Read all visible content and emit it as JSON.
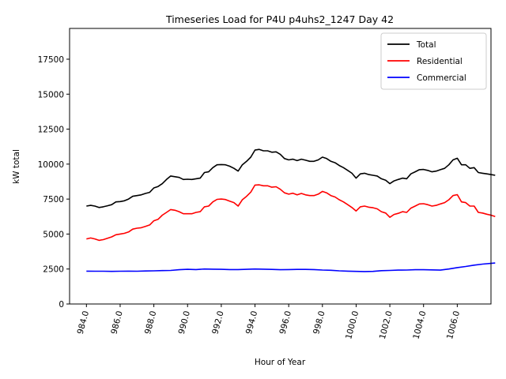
{
  "chart_data": {
    "type": "line",
    "title": "Timeseries Load for P4U p4uhs2_1247  Day 42",
    "xlabel": "Hour of Year",
    "ylabel": "kW total",
    "xlim": [
      983.0,
      1008.0
    ],
    "ylim": [
      0,
      19700
    ],
    "x_ticks": [
      984,
      986,
      988,
      990,
      992,
      994,
      996,
      998,
      1000,
      1002,
      1004,
      1006
    ],
    "x_tick_labels": [
      "984.0",
      "986.0",
      "988.0",
      "990.0",
      "992.0",
      "994.0",
      "996.0",
      "998.0",
      "1000.0",
      "1002.0",
      "1004.0",
      "1006.0"
    ],
    "y_ticks": [
      0,
      2500,
      5000,
      7500,
      10000,
      12500,
      15000,
      17500
    ],
    "y_tick_labels": [
      "0",
      "2500",
      "5000",
      "7500",
      "10000",
      "12500",
      "15000",
      "17500"
    ],
    "legend_position": "top-right",
    "series": [
      {
        "name": "Total",
        "color": "#000000",
        "points": [
          [
            984.0,
            7000
          ],
          [
            984.25,
            7050
          ],
          [
            984.5,
            7000
          ],
          [
            984.75,
            6900
          ],
          [
            985.0,
            6950
          ],
          [
            985.25,
            7020
          ],
          [
            985.5,
            7100
          ],
          [
            985.75,
            7300
          ],
          [
            986.0,
            7320
          ],
          [
            986.25,
            7380
          ],
          [
            986.5,
            7500
          ],
          [
            986.75,
            7700
          ],
          [
            987.0,
            7750
          ],
          [
            987.25,
            7800
          ],
          [
            987.5,
            7900
          ],
          [
            987.75,
            7980
          ],
          [
            988.0,
            8300
          ],
          [
            988.25,
            8400
          ],
          [
            988.5,
            8600
          ],
          [
            988.75,
            8900
          ],
          [
            989.0,
            9150
          ],
          [
            989.25,
            9100
          ],
          [
            989.5,
            9050
          ],
          [
            989.75,
            8900
          ],
          [
            990.0,
            8920
          ],
          [
            990.25,
            8900
          ],
          [
            990.5,
            8950
          ],
          [
            990.75,
            9000
          ],
          [
            991.0,
            9400
          ],
          [
            991.25,
            9450
          ],
          [
            991.5,
            9750
          ],
          [
            991.75,
            9950
          ],
          [
            992.0,
            9970
          ],
          [
            992.25,
            9950
          ],
          [
            992.5,
            9850
          ],
          [
            992.75,
            9700
          ],
          [
            993.0,
            9500
          ],
          [
            993.25,
            9950
          ],
          [
            993.5,
            10200
          ],
          [
            993.75,
            10500
          ],
          [
            994.0,
            11000
          ],
          [
            994.25,
            11050
          ],
          [
            994.5,
            10950
          ],
          [
            994.75,
            10950
          ],
          [
            995.0,
            10850
          ],
          [
            995.25,
            10880
          ],
          [
            995.5,
            10700
          ],
          [
            995.75,
            10400
          ],
          [
            996.0,
            10300
          ],
          [
            996.25,
            10350
          ],
          [
            996.5,
            10250
          ],
          [
            996.75,
            10350
          ],
          [
            997.0,
            10280
          ],
          [
            997.25,
            10200
          ],
          [
            997.5,
            10200
          ],
          [
            997.75,
            10300
          ],
          [
            998.0,
            10500
          ],
          [
            998.25,
            10400
          ],
          [
            998.5,
            10200
          ],
          [
            998.75,
            10100
          ],
          [
            999.0,
            9900
          ],
          [
            999.25,
            9750
          ],
          [
            999.5,
            9550
          ],
          [
            999.75,
            9350
          ],
          [
            1000.0,
            9000
          ],
          [
            1000.25,
            9300
          ],
          [
            1000.5,
            9350
          ],
          [
            1000.75,
            9250
          ],
          [
            1001.0,
            9200
          ],
          [
            1001.25,
            9150
          ],
          [
            1001.5,
            8950
          ],
          [
            1001.75,
            8850
          ],
          [
            1002.0,
            8600
          ],
          [
            1002.25,
            8800
          ],
          [
            1002.5,
            8900
          ],
          [
            1002.75,
            9000
          ],
          [
            1003.0,
            8950
          ],
          [
            1003.25,
            9300
          ],
          [
            1003.5,
            9450
          ],
          [
            1003.75,
            9600
          ],
          [
            1004.0,
            9620
          ],
          [
            1004.25,
            9550
          ],
          [
            1004.5,
            9450
          ],
          [
            1004.75,
            9500
          ],
          [
            1005.0,
            9600
          ],
          [
            1005.25,
            9700
          ],
          [
            1005.5,
            9950
          ],
          [
            1005.75,
            10300
          ],
          [
            1006.0,
            10420
          ],
          [
            1006.25,
            9950
          ],
          [
            1006.5,
            9950
          ],
          [
            1006.75,
            9700
          ],
          [
            1007.0,
            9750
          ],
          [
            1007.25,
            9400
          ],
          [
            1007.5,
            9350
          ],
          [
            1007.75,
            9300
          ],
          [
            1008.0,
            9250
          ],
          [
            1008.25,
            9200
          ]
        ]
      },
      {
        "name": "Residential",
        "color": "#ff0000",
        "points": [
          [
            984.0,
            4650
          ],
          [
            984.25,
            4720
          ],
          [
            984.5,
            4650
          ],
          [
            984.75,
            4550
          ],
          [
            985.0,
            4600
          ],
          [
            985.25,
            4700
          ],
          [
            985.5,
            4800
          ],
          [
            985.75,
            4950
          ],
          [
            986.0,
            5000
          ],
          [
            986.25,
            5050
          ],
          [
            986.5,
            5150
          ],
          [
            986.75,
            5350
          ],
          [
            987.0,
            5420
          ],
          [
            987.25,
            5450
          ],
          [
            987.5,
            5550
          ],
          [
            987.75,
            5650
          ],
          [
            988.0,
            5950
          ],
          [
            988.25,
            6050
          ],
          [
            988.5,
            6350
          ],
          [
            988.75,
            6550
          ],
          [
            989.0,
            6750
          ],
          [
            989.25,
            6700
          ],
          [
            989.5,
            6600
          ],
          [
            989.75,
            6450
          ],
          [
            990.0,
            6450
          ],
          [
            990.25,
            6450
          ],
          [
            990.5,
            6550
          ],
          [
            990.75,
            6600
          ],
          [
            991.0,
            6950
          ],
          [
            991.25,
            7000
          ],
          [
            991.5,
            7300
          ],
          [
            991.75,
            7480
          ],
          [
            992.0,
            7500
          ],
          [
            992.25,
            7470
          ],
          [
            992.5,
            7350
          ],
          [
            992.75,
            7250
          ],
          [
            993.0,
            7000
          ],
          [
            993.25,
            7450
          ],
          [
            993.5,
            7700
          ],
          [
            993.75,
            8000
          ],
          [
            994.0,
            8500
          ],
          [
            994.25,
            8520
          ],
          [
            994.5,
            8450
          ],
          [
            994.75,
            8450
          ],
          [
            995.0,
            8350
          ],
          [
            995.25,
            8380
          ],
          [
            995.5,
            8200
          ],
          [
            995.75,
            7950
          ],
          [
            996.0,
            7850
          ],
          [
            996.25,
            7920
          ],
          [
            996.5,
            7800
          ],
          [
            996.75,
            7900
          ],
          [
            997.0,
            7800
          ],
          [
            997.25,
            7750
          ],
          [
            997.5,
            7750
          ],
          [
            997.75,
            7850
          ],
          [
            998.0,
            8050
          ],
          [
            998.25,
            7950
          ],
          [
            998.5,
            7750
          ],
          [
            998.75,
            7650
          ],
          [
            999.0,
            7450
          ],
          [
            999.25,
            7300
          ],
          [
            999.5,
            7100
          ],
          [
            999.75,
            6900
          ],
          [
            1000.0,
            6650
          ],
          [
            1000.25,
            6950
          ],
          [
            1000.5,
            7000
          ],
          [
            1000.75,
            6920
          ],
          [
            1001.0,
            6880
          ],
          [
            1001.25,
            6800
          ],
          [
            1001.5,
            6600
          ],
          [
            1001.75,
            6500
          ],
          [
            1002.0,
            6200
          ],
          [
            1002.25,
            6400
          ],
          [
            1002.5,
            6480
          ],
          [
            1002.75,
            6600
          ],
          [
            1003.0,
            6550
          ],
          [
            1003.25,
            6850
          ],
          [
            1003.5,
            7000
          ],
          [
            1003.75,
            7150
          ],
          [
            1004.0,
            7170
          ],
          [
            1004.25,
            7100
          ],
          [
            1004.5,
            7000
          ],
          [
            1004.75,
            7050
          ],
          [
            1005.0,
            7150
          ],
          [
            1005.25,
            7250
          ],
          [
            1005.5,
            7450
          ],
          [
            1005.75,
            7750
          ],
          [
            1006.0,
            7820
          ],
          [
            1006.25,
            7300
          ],
          [
            1006.5,
            7250
          ],
          [
            1006.75,
            7000
          ],
          [
            1007.0,
            7000
          ],
          [
            1007.25,
            6550
          ],
          [
            1007.5,
            6500
          ],
          [
            1007.75,
            6420
          ],
          [
            1008.0,
            6350
          ],
          [
            1008.25,
            6250
          ]
        ]
      },
      {
        "name": "Commercial",
        "color": "#0000ff",
        "points": [
          [
            984.0,
            2350
          ],
          [
            984.5,
            2340
          ],
          [
            985.0,
            2340
          ],
          [
            985.5,
            2330
          ],
          [
            986.0,
            2340
          ],
          [
            986.5,
            2350
          ],
          [
            987.0,
            2345
          ],
          [
            987.5,
            2360
          ],
          [
            988.0,
            2370
          ],
          [
            988.5,
            2385
          ],
          [
            989.0,
            2400
          ],
          [
            989.5,
            2450
          ],
          [
            990.0,
            2480
          ],
          [
            990.5,
            2460
          ],
          [
            991.0,
            2500
          ],
          [
            991.5,
            2490
          ],
          [
            992.0,
            2480
          ],
          [
            992.5,
            2460
          ],
          [
            993.0,
            2460
          ],
          [
            993.5,
            2480
          ],
          [
            994.0,
            2500
          ],
          [
            994.5,
            2490
          ],
          [
            995.0,
            2470
          ],
          [
            995.5,
            2450
          ],
          [
            996.0,
            2460
          ],
          [
            996.5,
            2470
          ],
          [
            997.0,
            2470
          ],
          [
            997.5,
            2460
          ],
          [
            998.0,
            2430
          ],
          [
            998.5,
            2410
          ],
          [
            999.0,
            2370
          ],
          [
            999.5,
            2350
          ],
          [
            1000.0,
            2330
          ],
          [
            1000.5,
            2320
          ],
          [
            1001.0,
            2330
          ],
          [
            1001.5,
            2380
          ],
          [
            1002.0,
            2400
          ],
          [
            1002.5,
            2420
          ],
          [
            1003.0,
            2430
          ],
          [
            1003.5,
            2450
          ],
          [
            1004.0,
            2450
          ],
          [
            1004.5,
            2440
          ],
          [
            1005.0,
            2420
          ],
          [
            1005.5,
            2500
          ],
          [
            1006.0,
            2600
          ],
          [
            1006.5,
            2680
          ],
          [
            1007.0,
            2780
          ],
          [
            1007.5,
            2850
          ],
          [
            1008.25,
            2930
          ]
        ]
      }
    ]
  }
}
